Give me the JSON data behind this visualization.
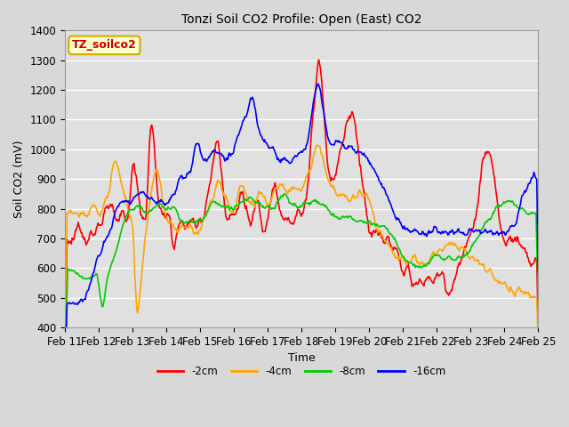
{
  "title": "Tonzi Soil CO2 Profile: Open (East) CO2",
  "xlabel": "Time",
  "ylabel": "Soil CO2 (mV)",
  "ylim": [
    400,
    1400
  ],
  "figsize": [
    6.4,
    4.8
  ],
  "dpi": 100,
  "outer_bg": "#d8d8d8",
  "plot_bg_color": "#e0e0e0",
  "grid_color": "#ffffff",
  "tick_labels": [
    "Feb 11",
    "Feb 12",
    "Feb 13",
    "Feb 14",
    "Feb 15",
    "Feb 16",
    "Feb 17",
    "Feb 18",
    "Feb 19",
    "Feb 20",
    "Feb 21",
    "Feb 22",
    "Feb 23",
    "Feb 24",
    "Feb 25"
  ],
  "legend_labels": [
    "-2cm",
    "-4cm",
    "-8cm",
    "-16cm"
  ],
  "legend_colors": [
    "#ff0000",
    "#ffa500",
    "#00cc00",
    "#0000ff"
  ],
  "line_width": 1.2,
  "annotation_text": "TZ_soilco2",
  "annotation_color": "#cc0000",
  "annotation_bg": "#ffffcc",
  "annotation_border": "#ccaa00"
}
